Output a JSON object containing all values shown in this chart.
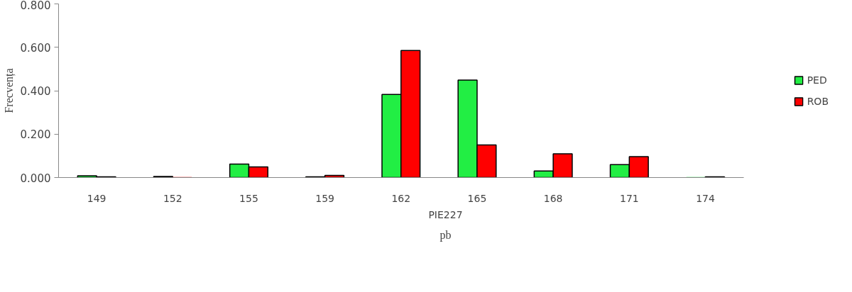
{
  "chart_data": {
    "type": "bar",
    "xlabel": "pb",
    "ylabel": "Frecvența",
    "annotations": [
      "PIE227"
    ],
    "categories": [
      "149",
      "152",
      "155",
      "159",
      "162",
      "165",
      "168",
      "171",
      "174"
    ],
    "series": [
      {
        "name": "PED",
        "color": "#22ee44",
        "values": [
          0.008,
          0.005,
          0.062,
          0.003,
          0.383,
          0.449,
          0.03,
          0.06,
          0
        ]
      },
      {
        "name": "ROB",
        "color": "#ff0000",
        "values": [
          0.003,
          0,
          0.049,
          0.01,
          0.585,
          0.15,
          0.109,
          0.096,
          0.003
        ]
      }
    ],
    "ylim": [
      0,
      0.8
    ],
    "yticks": [
      {
        "value": 0,
        "label": "0.000"
      },
      {
        "value": 0.2,
        "label": "0.200"
      },
      {
        "value": 0.4,
        "label": "0.400"
      },
      {
        "value": 0.6,
        "label": "0.600"
      },
      {
        "value": 0.8,
        "label": "0.800"
      }
    ],
    "grid": false,
    "legend": "right"
  }
}
